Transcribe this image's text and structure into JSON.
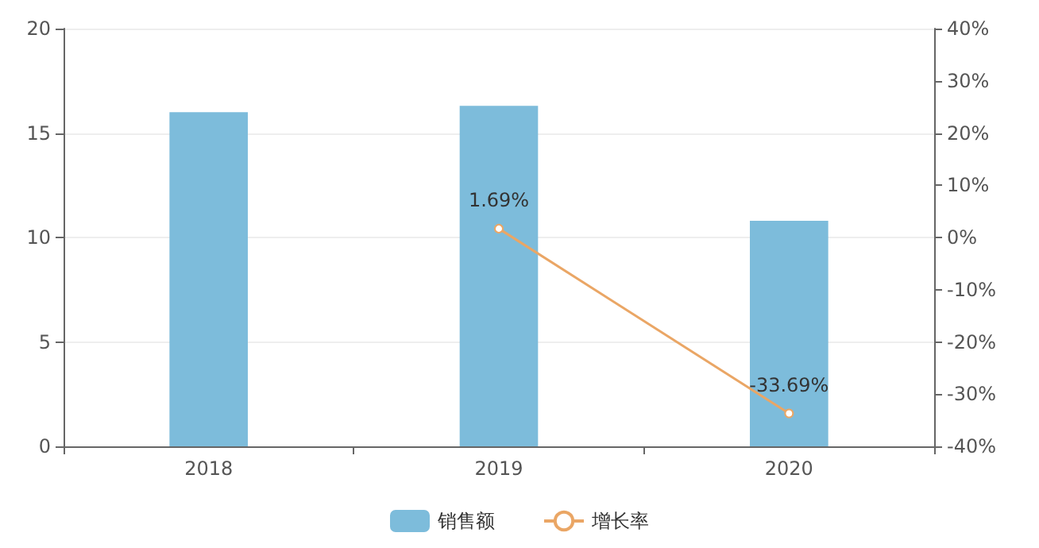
{
  "chart_data": {
    "type": "bar",
    "categories": [
      "2018",
      "2019",
      "2020"
    ],
    "series": [
      {
        "name": "销售额",
        "color": "#7dbcdb",
        "values": [
          16.0,
          16.3,
          10.8
        ]
      },
      {
        "name": "增长率",
        "type": "line",
        "axis": "y2",
        "color": "#eaa665",
        "values": [
          null,
          1.69,
          -33.69
        ],
        "value_labels": [
          null,
          "1.69%",
          "-33.69%"
        ]
      }
    ],
    "ylim": [
      0,
      20
    ],
    "yticks": [
      0,
      5,
      10,
      15,
      20
    ],
    "y2lim": [
      -40,
      40
    ],
    "y2ticks": [
      {
        "value": -40,
        "label": "-40%"
      },
      {
        "value": -30,
        "label": "-30%"
      },
      {
        "value": -20,
        "label": "-20%"
      },
      {
        "value": -10,
        "label": "-10%"
      },
      {
        "value": 0,
        "label": "0%"
      },
      {
        "value": 10,
        "label": "10%"
      },
      {
        "value": 20,
        "label": "20%"
      },
      {
        "value": 30,
        "label": "30%"
      },
      {
        "value": 40,
        "label": "40%"
      }
    ],
    "grid": "y",
    "legend": "bottom",
    "marker": "circle"
  }
}
